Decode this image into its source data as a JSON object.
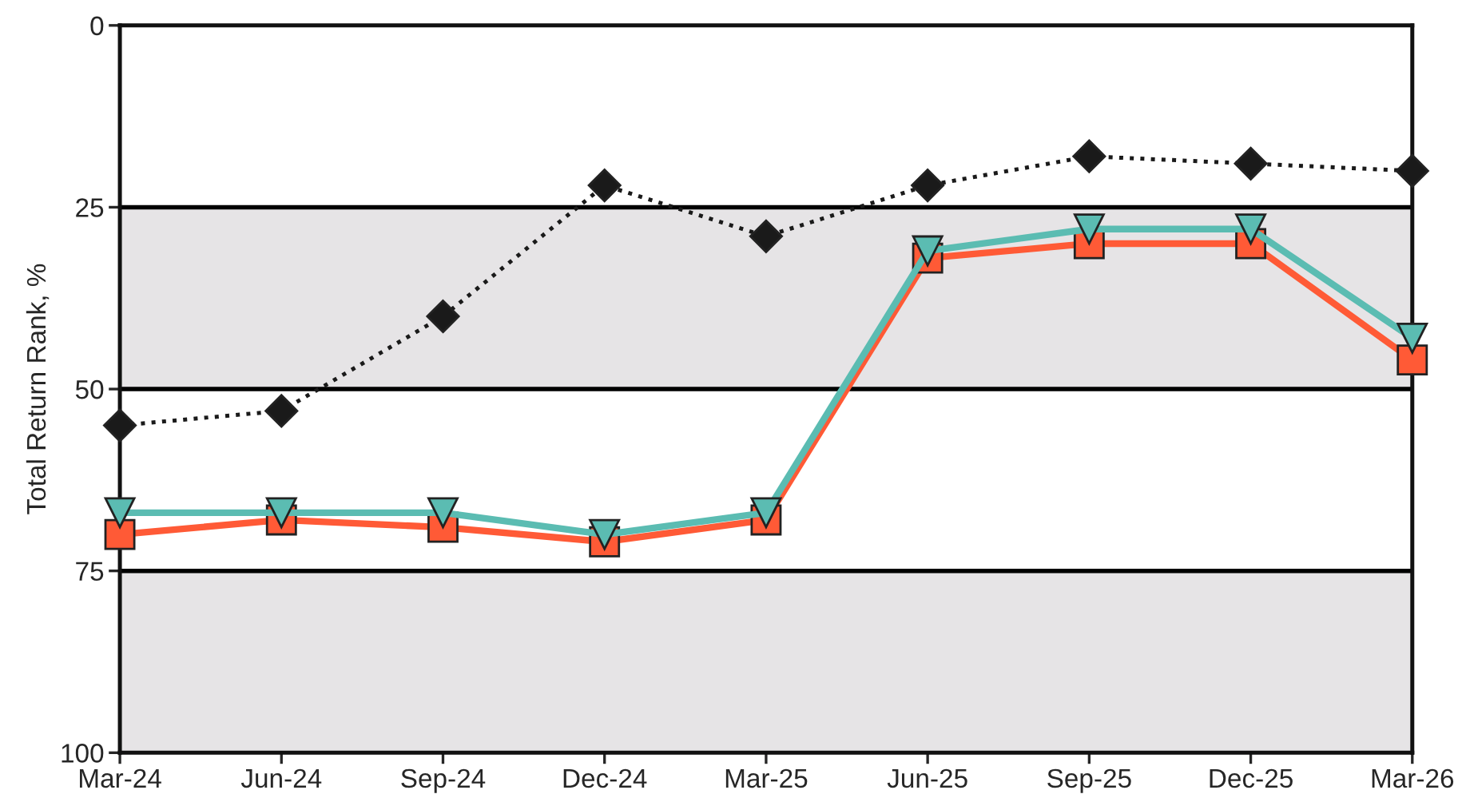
{
  "chart_data": {
    "type": "line",
    "ylabel": "Total Return Rank, %",
    "categories": [
      "Mar-24",
      "Jun-24",
      "Sep-24",
      "Dec-24",
      "Mar-25",
      "Jun-25",
      "Sep-25",
      "Dec-25",
      "Mar-26"
    ],
    "ylim": [
      100,
      0
    ],
    "yticks": [
      0,
      25,
      50,
      75,
      100
    ],
    "grid": false,
    "legend": false,
    "bands": [
      {
        "axis": "y",
        "from": 25,
        "to": 50,
        "color": "#e6e4e6"
      },
      {
        "axis": "y",
        "from": 75,
        "to": 100,
        "color": "#e6e4e6"
      }
    ],
    "ref_lines": [
      {
        "axis": "y",
        "value": 25,
        "color": "#000000",
        "line_style": "solid"
      },
      {
        "axis": "y",
        "value": 50,
        "color": "#000000",
        "line_style": "solid"
      },
      {
        "axis": "y",
        "value": 75,
        "color": "#000000",
        "line_style": "solid"
      }
    ],
    "series": [
      {
        "color": "#ff5a36",
        "marker": "square",
        "line_style": "solid",
        "values": [
          70,
          68,
          69,
          71,
          68,
          32,
          30,
          30,
          46
        ]
      },
      {
        "color": "#5bbcb2",
        "marker": "triangle",
        "line_style": "solid",
        "values": [
          67,
          67,
          67,
          70,
          67,
          31,
          28,
          28,
          43
        ]
      },
      {
        "color": "#1a1a1a",
        "marker": "diamond",
        "line_style": "dotted",
        "values": [
          55,
          53,
          40,
          22,
          29,
          22,
          18,
          19,
          20
        ]
      }
    ]
  }
}
